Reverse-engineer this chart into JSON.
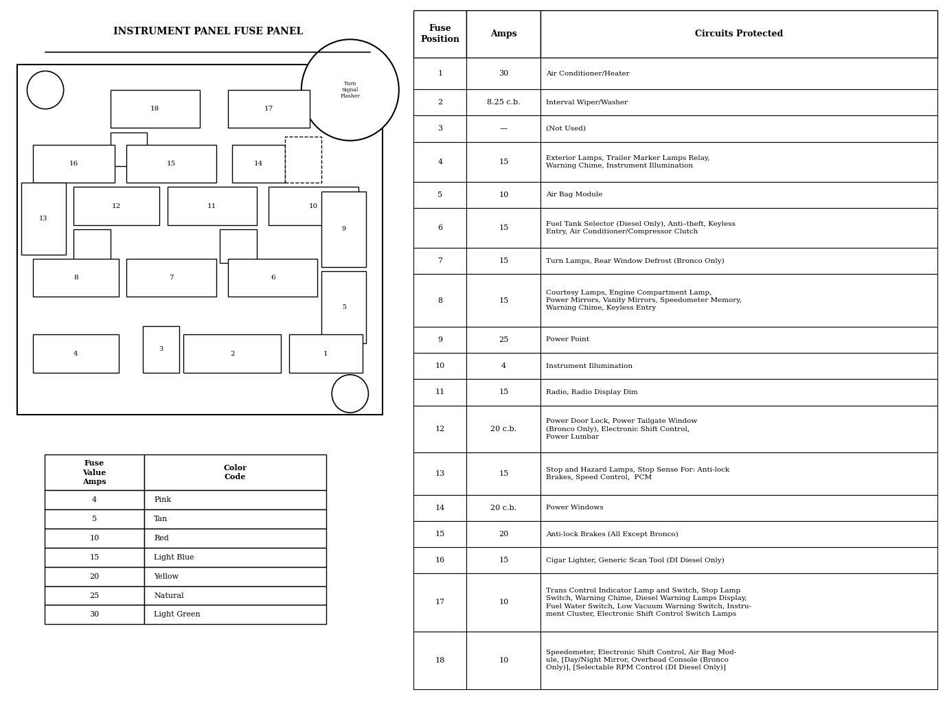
{
  "title": "INSTRUMENT PANEL FUSE PANEL",
  "background_color": "#ffffff",
  "line_color": "#000000",
  "table_headers": [
    "Fuse\nPosition",
    "Amps",
    "Circuits Protected"
  ],
  "table_rows": [
    [
      "1",
      "30",
      "Air Conditioner/Heater"
    ],
    [
      "2",
      "8.25 c.b.",
      "Interval Wiper/Washer"
    ],
    [
      "3",
      "—",
      "(Not Used)"
    ],
    [
      "4",
      "15",
      "Exterior Lamps, Trailer Marker Lamps Relay,\nWarning Chime, Instrument Illumination"
    ],
    [
      "5",
      "10",
      "Air Bag Module"
    ],
    [
      "6",
      "15",
      "Fuel Tank Selector (Diesel Only), Anti–theft, Keyless\nEntry, Air Conditioner/Compressor Clutch"
    ],
    [
      "7",
      "15",
      "Turn Lamps, Rear Window Defrost (Bronco Only)"
    ],
    [
      "8",
      "15",
      "Courtesy Lamps, Engine Compartment Lamp,\nPower Mirrors, Vanity Mirrors, Speedometer Memory,\nWarning Chime, Keyless Entry"
    ],
    [
      "9",
      "25",
      "Power Point"
    ],
    [
      "10",
      "4",
      "Instrument Illumination"
    ],
    [
      "11",
      "15",
      "Radio, Radio Display Dim"
    ],
    [
      "12",
      "20 c.b.",
      "Power Door Lock, Power Tailgate Window\n(Bronco Only), Electronic Shift Control,\nPower Lumbar"
    ],
    [
      "13",
      "15",
      "Stop and Hazard Lamps, Stop Sense For: Anti-lock\nBrakes, Speed Control,  PCM"
    ],
    [
      "14",
      "20 c.b.",
      "Power Windows"
    ],
    [
      "15",
      "20",
      "Anti-lock Brakes (All Except Bronco)"
    ],
    [
      "16",
      "15",
      "Cigar Lighter, Generic Scan Tool (DI Diesel Only)"
    ],
    [
      "17",
      "10",
      "Trans Control Indicator Lamp and Switch, Stop Lamp\nSwitch, Warning Chime, Diesel Warning Lamps Display,\nFuel Water Switch, Low Vacuum Warning Switch, Instru-\nment Cluster, Electronic Shift Control Switch Lamps"
    ],
    [
      "18",
      "10",
      "Speedometer, Electronic Shift Control, Air Bag Mod-\nule, [Day/Night Mirror, Overhead Console (Bronco\nOnly)], [Selectable RPM Control (DI Diesel Only)]"
    ]
  ],
  "legend_headers": [
    "Fuse\nValue\nAmps",
    "Color\nCode"
  ],
  "legend_rows": [
    [
      "4",
      "Pink"
    ],
    [
      "5",
      "Tan"
    ],
    [
      "10",
      "Red"
    ],
    [
      "15",
      "Light Blue"
    ],
    [
      "20",
      "Yellow"
    ],
    [
      "25",
      "Natural"
    ],
    [
      "30",
      "Light Green"
    ]
  ]
}
